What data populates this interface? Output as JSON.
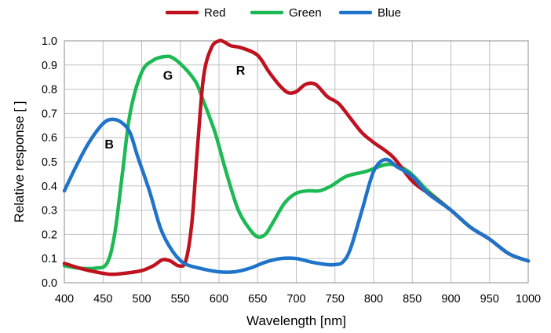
{
  "chart_data": {
    "type": "line",
    "xlabel": "Wavelength [nm]",
    "ylabel": "Relative response [ ]",
    "xlim": [
      400,
      1000
    ],
    "ylim": [
      0,
      1.0
    ],
    "grid": true,
    "legend_position": "top-center",
    "x_ticks": [
      400,
      450,
      500,
      550,
      600,
      650,
      700,
      750,
      800,
      850,
      900,
      950,
      1000
    ],
    "y_ticks": [
      0.0,
      0.1,
      0.2,
      0.3,
      0.4,
      0.5,
      0.6,
      0.7,
      0.8,
      0.9,
      1.0
    ],
    "x_tick_labels": [
      "400",
      "450",
      "500",
      "550",
      "600",
      "650",
      "700",
      "750",
      "800",
      "850",
      "900",
      "950",
      "1000"
    ],
    "y_tick_labels": [
      "0.0",
      "0.1",
      "0.2",
      "0.3",
      "0.4",
      "0.5",
      "0.6",
      "0.7",
      "0.8",
      "0.9",
      "1.0"
    ],
    "series": [
      {
        "name": "Red",
        "color": "#c0111f",
        "x": [
          400,
          420,
          440,
          460,
          480,
          500,
          515,
          527,
          537,
          548,
          557,
          565,
          572,
          580,
          590,
          600,
          607,
          615,
          630,
          650,
          665,
          680,
          690,
          700,
          712,
          725,
          740,
          755,
          770,
          785,
          800,
          825,
          850,
          875,
          900,
          925,
          950,
          975,
          1000
        ],
        "y": [
          0.08,
          0.06,
          0.045,
          0.035,
          0.04,
          0.05,
          0.07,
          0.095,
          0.09,
          0.07,
          0.09,
          0.25,
          0.55,
          0.85,
          0.97,
          1.0,
          0.995,
          0.98,
          0.97,
          0.94,
          0.87,
          0.81,
          0.785,
          0.79,
          0.82,
          0.82,
          0.77,
          0.74,
          0.68,
          0.62,
          0.58,
          0.52,
          0.42,
          0.36,
          0.3,
          0.23,
          0.18,
          0.12,
          0.09
        ]
      },
      {
        "name": "Green",
        "color": "#1db954",
        "x": [
          400,
          420,
          440,
          455,
          465,
          475,
          485,
          500,
          515,
          530,
          540,
          555,
          570,
          580,
          595,
          610,
          625,
          640,
          650,
          660,
          670,
          685,
          700,
          715,
          730,
          745,
          765,
          790,
          820,
          845,
          870,
          900,
          925,
          950,
          975,
          1000
        ],
        "y": [
          0.07,
          0.06,
          0.06,
          0.08,
          0.2,
          0.45,
          0.7,
          0.87,
          0.92,
          0.935,
          0.93,
          0.89,
          0.83,
          0.75,
          0.62,
          0.45,
          0.3,
          0.22,
          0.19,
          0.2,
          0.25,
          0.33,
          0.37,
          0.38,
          0.38,
          0.4,
          0.44,
          0.46,
          0.49,
          0.46,
          0.38,
          0.3,
          0.23,
          0.18,
          0.12,
          0.09
        ]
      },
      {
        "name": "Blue",
        "color": "#1f73c8",
        "x": [
          400,
          415,
          430,
          445,
          455,
          465,
          475,
          485,
          495,
          510,
          525,
          540,
          555,
          575,
          600,
          620,
          640,
          660,
          680,
          700,
          720,
          740,
          750,
          760,
          770,
          785,
          800,
          815,
          830,
          850,
          870,
          900,
          925,
          950,
          975,
          1000
        ],
        "y": [
          0.38,
          0.48,
          0.57,
          0.64,
          0.67,
          0.675,
          0.66,
          0.62,
          0.52,
          0.38,
          0.22,
          0.13,
          0.08,
          0.06,
          0.045,
          0.045,
          0.06,
          0.085,
          0.1,
          0.1,
          0.085,
          0.075,
          0.075,
          0.085,
          0.14,
          0.3,
          0.46,
          0.51,
          0.48,
          0.44,
          0.37,
          0.3,
          0.23,
          0.18,
          0.12,
          0.09
        ]
      }
    ],
    "annotations": [
      {
        "text": "B",
        "x": 458,
        "y": 0.555
      },
      {
        "text": "G",
        "x": 534,
        "y": 0.84
      },
      {
        "text": "R",
        "x": 628,
        "y": 0.86
      }
    ]
  }
}
